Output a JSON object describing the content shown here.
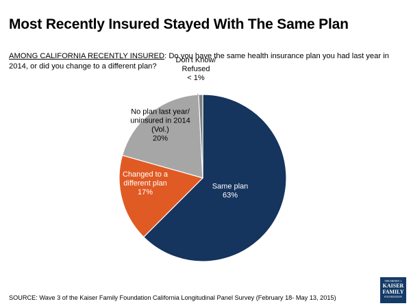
{
  "title": "Most Recently Insured Stayed With The Same Plan",
  "question": {
    "lead": "AMONG CALIFORNIA RECENTLY INSURED",
    "text": ": Do you have the same health insurance plan you had last year in 2014, or did you change to a different plan?"
  },
  "chart_data": {
    "type": "pie",
    "title": "",
    "slices": [
      {
        "name": "Same plan",
        "value": 63,
        "display": "63%",
        "color": "#15345e",
        "label_color": "#ffffff"
      },
      {
        "name": "Changed to a different plan",
        "value": 17,
        "display": "17%",
        "color": "#e05a24",
        "label_color": "#ffffff"
      },
      {
        "name": "No plan last year/ uninsured in 2014 (Vol.)",
        "value": 20,
        "display": "20%",
        "color": "#a6a6a6",
        "label_color": "#000000"
      },
      {
        "name": "Don't Know/ Refused",
        "value": 0.8,
        "display": "< 1%",
        "color": "#7f7f7f",
        "label_color": "#000000"
      }
    ],
    "labels": [
      {
        "lines": [
          "Same plan",
          "63%"
        ]
      },
      {
        "lines": [
          "Changed to a",
          "different plan",
          "17%"
        ]
      },
      {
        "lines": [
          "No plan last year/",
          "uninsured in 2014",
          "(Vol.)",
          "20%"
        ]
      },
      {
        "lines": [
          "Don't Know/",
          "Refused",
          "< 1%"
        ]
      }
    ]
  },
  "source": "SOURCE: Wave 3 of the Kaiser Family Foundation California Longitudinal Panel Survey (February 18- May 13, 2015)",
  "logo": {
    "line1": "THE HENRY J.",
    "line2": "KAISER",
    "line3": "FAMILY",
    "line4": "FOUNDATION"
  }
}
